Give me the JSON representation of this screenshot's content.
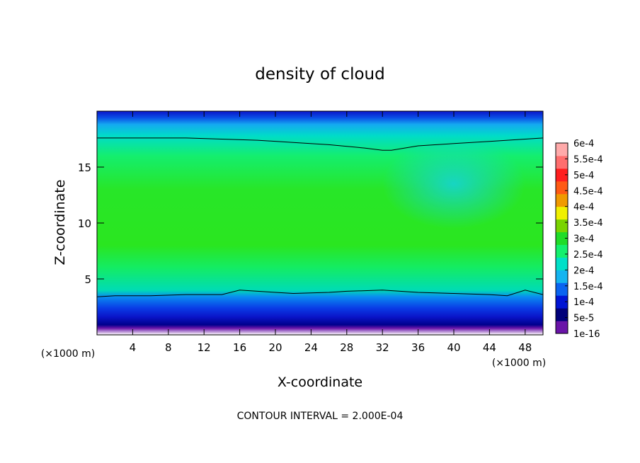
{
  "chart_data": {
    "type": "heatmap",
    "title": "density of cloud",
    "xlabel": "X-coordinate",
    "ylabel": "Z-coordinate",
    "x_unit": "(×1000 m)",
    "xlim": [
      0,
      50
    ],
    "ylim": [
      0,
      20
    ],
    "x_ticks": [
      4,
      8,
      12,
      16,
      20,
      24,
      28,
      32,
      36,
      40,
      44,
      48
    ],
    "y_ticks": [
      5,
      10,
      15
    ],
    "footer": "CONTOUR INTERVAL = 2.000E-04",
    "colorbar": {
      "labels": [
        "1e-16",
        "5e-5",
        "1e-4",
        "1.5e-4",
        "2e-4",
        "2.5e-4",
        "3e-4",
        "3.5e-4",
        "4e-4",
        "4.5e-4",
        "5e-4",
        "5.5e-4",
        "6e-4"
      ],
      "colors": [
        "#6a14a8",
        "#00007a",
        "#0014d4",
        "#0a64f0",
        "#14b4f0",
        "#00e0c8",
        "#14f06e",
        "#20dc28",
        "#7ad400",
        "#f0f000",
        "#f09a00",
        "#ff5a14",
        "#ff1e1e",
        "#ff6e6e",
        "#ffaaaa"
      ]
    },
    "field_description": "cloud density vs height: ~1e-4 near z=1-3, ~2e-4 at contour z≈3.5, peak ~3e-4 around z 6-14, decreasing to ~2e-4 at z≈17-18, then to ~0 near top z≈19.7",
    "contour_level": 0.0002,
    "contour_lower": [
      [
        0,
        3.4
      ],
      [
        2,
        3.5
      ],
      [
        6,
        3.5
      ],
      [
        10,
        3.6
      ],
      [
        14,
        3.6
      ],
      [
        16,
        4.0
      ],
      [
        18,
        3.9
      ],
      [
        22,
        3.7
      ],
      [
        26,
        3.8
      ],
      [
        28,
        3.9
      ],
      [
        32,
        4.0
      ],
      [
        36,
        3.8
      ],
      [
        40,
        3.7
      ],
      [
        44,
        3.6
      ],
      [
        46,
        3.5
      ],
      [
        48,
        4.0
      ],
      [
        50,
        3.6
      ]
    ],
    "contour_upper": [
      [
        0,
        17.6
      ],
      [
        4,
        17.6
      ],
      [
        10,
        17.6
      ],
      [
        14,
        17.5
      ],
      [
        18,
        17.4
      ],
      [
        22,
        17.2
      ],
      [
        26,
        17.0
      ],
      [
        30,
        16.7
      ],
      [
        32,
        16.5
      ],
      [
        33,
        16.5
      ],
      [
        36,
        16.9
      ],
      [
        40,
        17.1
      ],
      [
        44,
        17.3
      ],
      [
        48,
        17.5
      ],
      [
        50,
        17.6
      ]
    ]
  }
}
